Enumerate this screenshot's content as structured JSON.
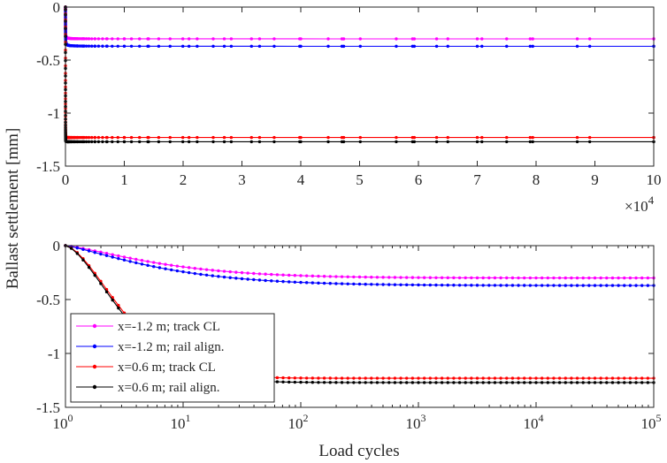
{
  "chart_data": [
    {
      "type": "line",
      "panel": "top",
      "xscale": "linear",
      "xlim": [
        0,
        100000
      ],
      "ylim": [
        -1.5,
        0
      ],
      "xticks": [
        0,
        10000,
        20000,
        30000,
        40000,
        50000,
        60000,
        70000,
        80000,
        90000,
        100000
      ],
      "xtick_labels": [
        "0",
        "1",
        "2",
        "3",
        "4",
        "5",
        "6",
        "7",
        "8",
        "9",
        "10"
      ],
      "x_exponent_base": "×10",
      "x_exponent_power": "4",
      "yticks": [
        0,
        -0.5,
        -1,
        -1.5
      ],
      "ytick_labels": [
        "0",
        "-0.5",
        "-1",
        "-1.5"
      ],
      "grid": false
    },
    {
      "type": "line",
      "panel": "bottom",
      "xscale": "log",
      "xlim": [
        1,
        100000
      ],
      "ylim": [
        -1.5,
        0
      ],
      "xticks": [
        1,
        10,
        100,
        1000,
        10000,
        100000
      ],
      "xtick_bases": [
        "10",
        "10",
        "10",
        "10",
        "10",
        "10"
      ],
      "xtick_powers": [
        "0",
        "1",
        "2",
        "3",
        "4",
        "5"
      ],
      "yticks": [
        0,
        -0.5,
        -1,
        -1.5
      ],
      "ytick_labels": [
        "0",
        "-0.5",
        "-1",
        "-1.5"
      ],
      "grid": false,
      "legend_position": "bottom-left"
    }
  ],
  "shared": {
    "xlabel": "Load cycles",
    "ylabel": "Ballast settlement [mm]",
    "series": [
      {
        "name": "x=-1.2 m; track CL",
        "color": "#ff00ff",
        "final": -0.3,
        "a": 0.95,
        "b": 1.3
      },
      {
        "name": "x=-1.2 m; rail align.",
        "color": "#0000ff",
        "final": -0.37,
        "a": 0.95,
        "b": 1.25
      },
      {
        "name": "x=0.6 m; track CL",
        "color": "#ff0000",
        "final": -1.23,
        "a": 0.62,
        "b": 1.6
      },
      {
        "name": "x=0.6 m; rail align.",
        "color": "#000000",
        "final": -1.27,
        "a": 0.62,
        "b": 1.55
      }
    ]
  }
}
